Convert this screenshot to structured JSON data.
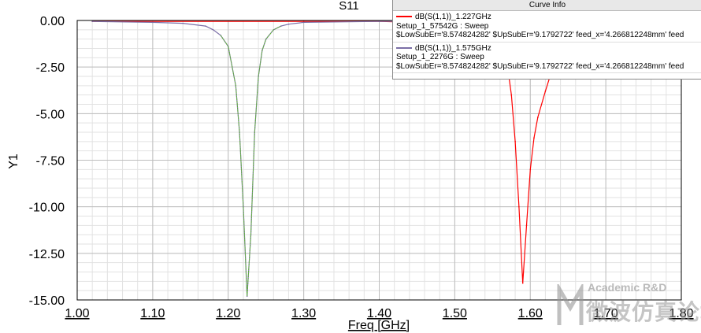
{
  "chart_data": {
    "type": "line",
    "title": "S11",
    "xlabel": "Freq [GHz]",
    "ylabel": "Y1",
    "xlim": [
      1.0,
      1.8
    ],
    "ylim": [
      -15.0,
      0.0
    ],
    "x_ticks": [
      "1.00",
      "1.10",
      "1.20",
      "1.30",
      "1.40",
      "1.50",
      "1.60",
      "1.70",
      "1.80"
    ],
    "y_ticks": [
      "0.00",
      "-2.50",
      "-5.00",
      "-7.50",
      "-10.00",
      "-12.50",
      "-15.00"
    ],
    "grid": true,
    "legend_placement": "top-right",
    "series": [
      {
        "name": "dB(S(1,1))_1.227GHz",
        "color": "#ff0000",
        "x": [
          1.02,
          1.3,
          1.4,
          1.45,
          1.5,
          1.52,
          1.54,
          1.55,
          1.56,
          1.57,
          1.575,
          1.58,
          1.585,
          1.59,
          1.595,
          1.6,
          1.605,
          1.61,
          1.62,
          1.63,
          1.64,
          1.65,
          1.67,
          1.7,
          1.75,
          1.8
        ],
        "y": [
          -0.05,
          -0.05,
          -0.05,
          -0.1,
          -0.2,
          -0.3,
          -0.5,
          -0.7,
          -1.2,
          -2.5,
          -4.0,
          -6.5,
          -10.0,
          -14.1,
          -11.0,
          -8.0,
          -6.3,
          -5.2,
          -3.8,
          -2.5,
          -1.6,
          -1.0,
          -0.5,
          -0.2,
          -0.1,
          -0.05
        ]
      },
      {
        "name": "dB(S(1,1))_1.575GHz",
        "color": "#7b6ea6",
        "x": [
          1.02,
          1.1,
          1.14,
          1.17,
          1.18,
          1.19,
          1.2,
          1.21,
          1.215,
          1.22,
          1.225,
          1.23,
          1.235,
          1.24,
          1.245,
          1.25,
          1.26,
          1.27,
          1.28,
          1.3,
          1.4,
          1.5,
          1.8
        ],
        "y": [
          -0.05,
          -0.1,
          -0.15,
          -0.3,
          -0.5,
          -0.8,
          -1.4,
          -3.5,
          -6.0,
          -10.0,
          -14.8,
          -11.5,
          -6.0,
          -3.0,
          -1.6,
          -1.0,
          -0.5,
          -0.3,
          -0.2,
          -0.1,
          -0.05,
          -0.05,
          -0.05
        ]
      }
    ]
  },
  "legend": {
    "header": "Curve Info",
    "entries": [
      {
        "name": "dB(S(1,1))_1.227GHz",
        "setup": "Setup_1_57542G : Sweep",
        "params": "$LowSubEr='8.574824282' $UpSubEr='9.1792722' feed_x='4.266812248mm' feed"
      },
      {
        "name": "dB(S(1,1))_1.575GHz",
        "setup": "Setup_1_2276G : Sweep",
        "params": "$LowSubEr='8.574824282' $UpSubEr='9.1792722' feed_x='4.266812248mm' feed"
      }
    ]
  },
  "watermark": {
    "text_en": "Academic R&D",
    "text_cn": "微波仿真论坛"
  }
}
